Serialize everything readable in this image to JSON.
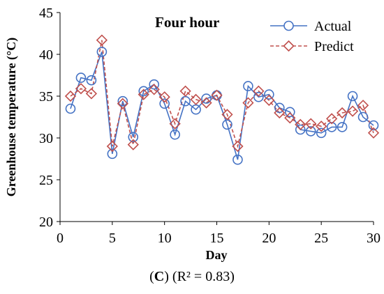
{
  "chart_data": {
    "type": "line",
    "title": "Four hour",
    "xlabel": "Day",
    "ylabel": "Greenhouse temperature (°C)",
    "xlim": [
      0,
      30
    ],
    "ylim": [
      20,
      45
    ],
    "xticks": [
      0,
      5,
      10,
      15,
      20,
      25,
      30
    ],
    "yticks": [
      20,
      25,
      30,
      35,
      40,
      45
    ],
    "grid": false,
    "legend_position": "top-right",
    "x": [
      1,
      2,
      3,
      4,
      5,
      6,
      7,
      8,
      9,
      10,
      11,
      12,
      13,
      14,
      15,
      16,
      17,
      18,
      19,
      20,
      21,
      22,
      23,
      24,
      25,
      26,
      27,
      28,
      29,
      30
    ],
    "series": [
      {
        "name": "Actual",
        "color": "#4472c4",
        "marker": "circle",
        "line_style": "solid",
        "values": [
          33.5,
          37.2,
          36.9,
          40.3,
          28.1,
          34.4,
          30.1,
          35.6,
          36.4,
          34.1,
          30.4,
          34.4,
          33.4,
          34.7,
          35.1,
          31.6,
          27.4,
          36.2,
          34.9,
          35.2,
          33.6,
          33.1,
          31.0,
          30.8,
          30.6,
          31.3,
          31.3,
          35.0,
          32.5,
          31.5
        ]
      },
      {
        "name": "Predict",
        "color": "#c0504d",
        "marker": "diamond",
        "line_style": "dashed",
        "values": [
          35.0,
          35.9,
          35.3,
          41.7,
          29.0,
          34.1,
          29.2,
          35.2,
          35.8,
          34.9,
          31.7,
          35.6,
          34.6,
          34.2,
          35.1,
          32.8,
          29.0,
          34.2,
          35.6,
          34.5,
          33.0,
          32.4,
          31.6,
          31.7,
          31.4,
          32.3,
          33.0,
          33.2,
          33.9,
          30.6
        ]
      }
    ]
  },
  "caption": {
    "label": "C",
    "r2": "(R² = 0.83)"
  }
}
